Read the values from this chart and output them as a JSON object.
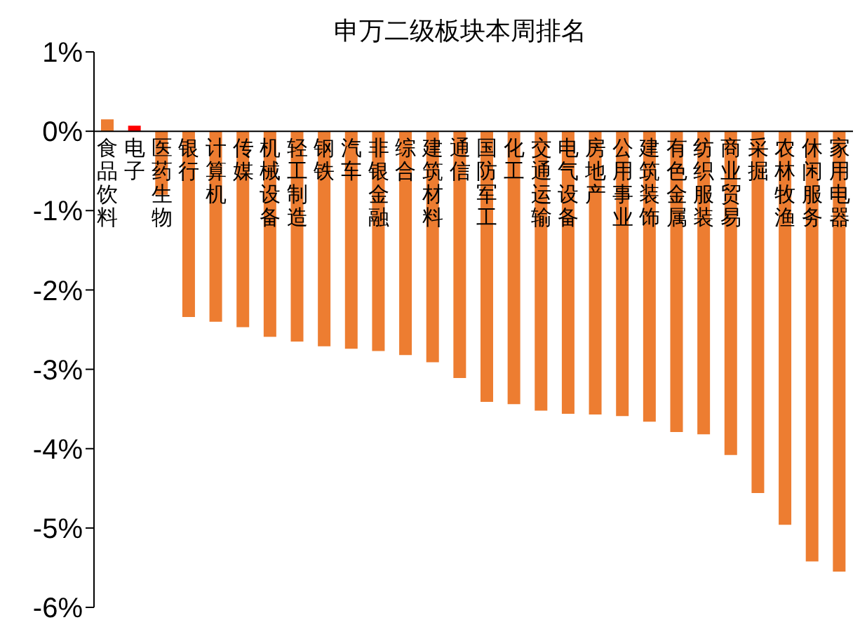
{
  "chart_data": {
    "type": "bar",
    "title": "申万二级板块本周排名",
    "categories": [
      "食品饮料",
      "电子",
      "医药生物",
      "银行",
      "计算机",
      "传媒",
      "机械设备",
      "轻工制造",
      "钢铁",
      "汽车",
      "非银金融",
      "综合",
      "建筑材料",
      "通信",
      "国防军工",
      "化工",
      "交通运输",
      "电气设备",
      "房地产",
      "公用事业",
      "建筑装饰",
      "有色金属",
      "纺织服装",
      "商业贸易",
      "采掘",
      "农林牧渔",
      "休闲服务",
      "家用电器"
    ],
    "values": [
      0.15,
      0.07,
      -0.8,
      -2.34,
      -2.4,
      -2.47,
      -2.59,
      -2.65,
      -2.71,
      -2.74,
      -2.77,
      -2.82,
      -2.91,
      -3.11,
      -3.41,
      -3.44,
      -3.52,
      -3.56,
      -3.57,
      -3.59,
      -3.66,
      -3.79,
      -3.82,
      -4.08,
      -4.56,
      -4.96,
      -5.42,
      -5.55
    ],
    "colors": [
      "#ed7d31",
      "#ff0000",
      "#ed7d31",
      "#ed7d31",
      "#ed7d31",
      "#ed7d31",
      "#ed7d31",
      "#ed7d31",
      "#ed7d31",
      "#ed7d31",
      "#ed7d31",
      "#ed7d31",
      "#ed7d31",
      "#ed7d31",
      "#ed7d31",
      "#ed7d31",
      "#ed7d31",
      "#ed7d31",
      "#ed7d31",
      "#ed7d31",
      "#ed7d31",
      "#ed7d31",
      "#ed7d31",
      "#ed7d31",
      "#ed7d31",
      "#ed7d31",
      "#ed7d31",
      "#ed7d31"
    ],
    "ylim": [
      -6,
      1
    ],
    "yticks": [
      {
        "value": 1,
        "label": "1%"
      },
      {
        "value": 0,
        "label": "0%"
      },
      {
        "value": -1,
        "label": "-1%"
      },
      {
        "value": -2,
        "label": "-2%"
      },
      {
        "value": -3,
        "label": "-3%"
      },
      {
        "value": -4,
        "label": "-4%"
      },
      {
        "value": -5,
        "label": "-5%"
      },
      {
        "value": -6,
        "label": "-6%"
      }
    ],
    "grid": false,
    "legend": false
  }
}
